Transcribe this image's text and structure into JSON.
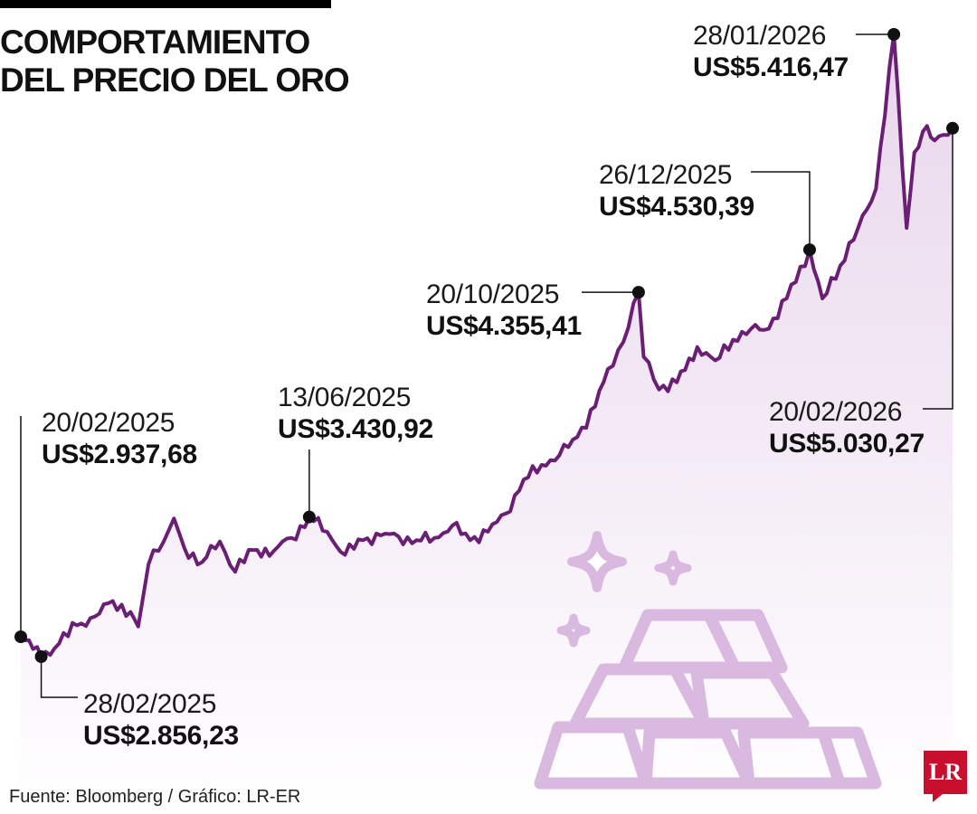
{
  "title": "COMPORTAMIENTO DEL PRECIO DEL ORO",
  "source": "Fuente: Bloomberg / Gráfico: LR-ER",
  "logo_text": "LR",
  "colors": {
    "line": "#6b1f74",
    "area_top": "#e6d2ea",
    "area_bottom": "#ffffff",
    "illustration": "#d9b9df",
    "logo": "#c8102e"
  },
  "chart_data": {
    "type": "area",
    "title": "COMPORTAMIENTO DEL PRECIO DEL ORO",
    "xlabel": "",
    "ylabel": "",
    "grid": false,
    "ylim": [
      2500,
      5600
    ],
    "x_range": [
      "2025-02-20",
      "2026-02-20"
    ],
    "series": [
      {
        "x": [
          "2025-02-20",
          "2025-02-28",
          "2025-03-07",
          "2025-03-14",
          "2025-03-21",
          "2025-03-28",
          "2025-04-04",
          "2025-04-07",
          "2025-04-11",
          "2025-04-17",
          "2025-04-21",
          "2025-04-25",
          "2025-05-02",
          "2025-05-09",
          "2025-05-15",
          "2025-05-22",
          "2025-05-30",
          "2025-06-06",
          "2025-06-13",
          "2025-06-20",
          "2025-06-27",
          "2025-07-04",
          "2025-07-11",
          "2025-07-18",
          "2025-07-25",
          "2025-08-01",
          "2025-08-08",
          "2025-08-15",
          "2025-08-22",
          "2025-08-29",
          "2025-09-05",
          "2025-09-12",
          "2025-09-19",
          "2025-09-26",
          "2025-10-03",
          "2025-10-08",
          "2025-10-14",
          "2025-10-20",
          "2025-10-22",
          "2025-10-28",
          "2025-11-04",
          "2025-11-12",
          "2025-11-19",
          "2025-11-26",
          "2025-12-03",
          "2025-12-10",
          "2025-12-17",
          "2025-12-26",
          "2025-12-31",
          "2026-01-07",
          "2026-01-14",
          "2026-01-21",
          "2026-01-28",
          "2026-02-02",
          "2026-02-05",
          "2026-02-10",
          "2026-02-13",
          "2026-02-20"
        ],
        "values": [
          2937.68,
          2856.23,
          2910,
          2985,
          3021,
          3085,
          3040,
          2980,
          3235,
          3330,
          3425,
          3305,
          3245,
          3330,
          3205,
          3295,
          3290,
          3345,
          3430.92,
          3370,
          3275,
          3335,
          3355,
          3350,
          3335,
          3345,
          3395,
          3335,
          3370,
          3445,
          3585,
          3645,
          3685,
          3760,
          3885,
          4040,
          4150,
          4355.41,
          4090,
          3955,
          3985,
          4130,
          4075,
          4160,
          4205,
          4205,
          4330,
          4530.39,
          4330,
          4465,
          4620,
          4780,
          5416.47,
          4620,
          4930,
          5040,
          4980,
          5030.27
        ]
      }
    ],
    "annotations": [
      {
        "date": "20/02/2025",
        "value": 2937.68,
        "label": "US$2.937,68"
      },
      {
        "date": "28/02/2025",
        "value": 2856.23,
        "label": "US$2.856,23"
      },
      {
        "date": "13/06/2025",
        "value": 3430.92,
        "label": "US$3.430,92"
      },
      {
        "date": "20/10/2025",
        "value": 4355.41,
        "label": "US$4.355,41"
      },
      {
        "date": "26/12/2025",
        "value": 4530.39,
        "label": "US$4.530,39"
      },
      {
        "date": "28/01/2026",
        "value": 5416.47,
        "label": "US$5.416,47"
      },
      {
        "date": "20/02/2026",
        "value": 5030.27,
        "label": "US$5.030,27"
      }
    ]
  }
}
